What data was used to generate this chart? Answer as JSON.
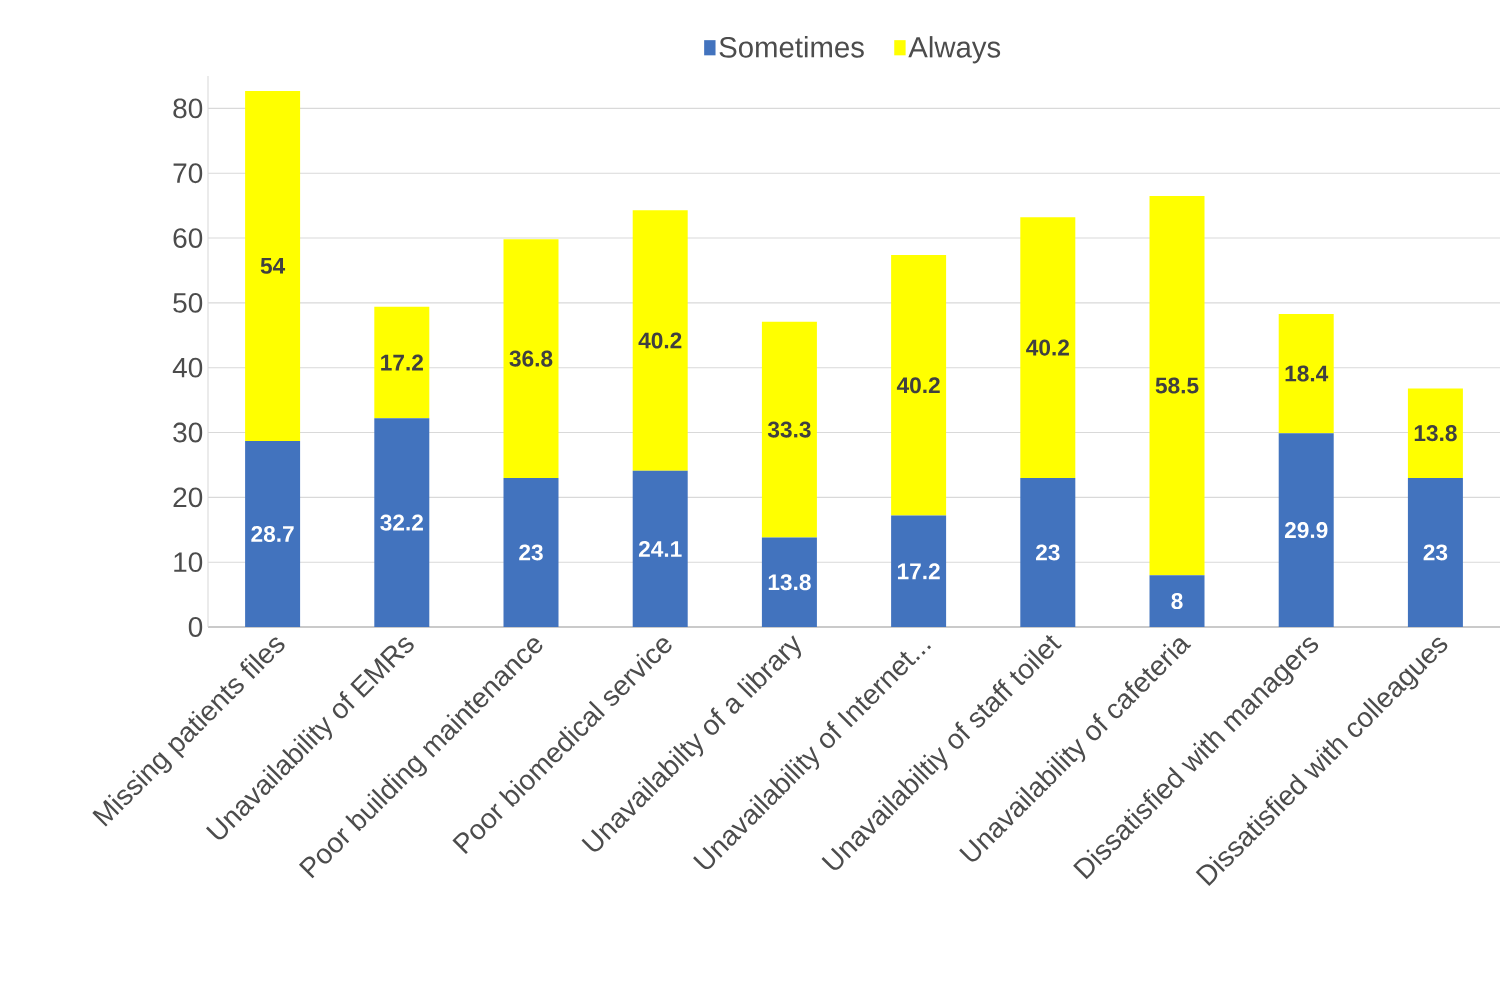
{
  "chart_data": {
    "type": "bar",
    "stacked": true,
    "data_labels": true,
    "legend": "top",
    "grid": "y",
    "categories": [
      "Missing patients files",
      "Unavailability of EMRs",
      "Poor building maintenance",
      "Poor biomedical service",
      "Unavailabilty of a library",
      "Unavailability of Internet...",
      "Unavailabiltiy of staff toilet",
      "Unavailability of cafeteria",
      "Dissatisfied with managers",
      "Dissatisfied with colleagues"
    ],
    "series": [
      {
        "name": "Sometimes",
        "color": "#4273be",
        "values": [
          28.7,
          32.2,
          23,
          24.1,
          13.8,
          17.2,
          23,
          8,
          29.9,
          23
        ]
      },
      {
        "name": "Always",
        "color": "#ffff00",
        "values": [
          54,
          17.2,
          36.8,
          40.2,
          33.3,
          40.2,
          40.2,
          58.5,
          18.4,
          13.8
        ]
      }
    ],
    "ylim": [
      0,
      85
    ],
    "yticks": [
      0,
      10,
      20,
      30,
      40,
      50,
      60,
      70,
      80
    ]
  }
}
